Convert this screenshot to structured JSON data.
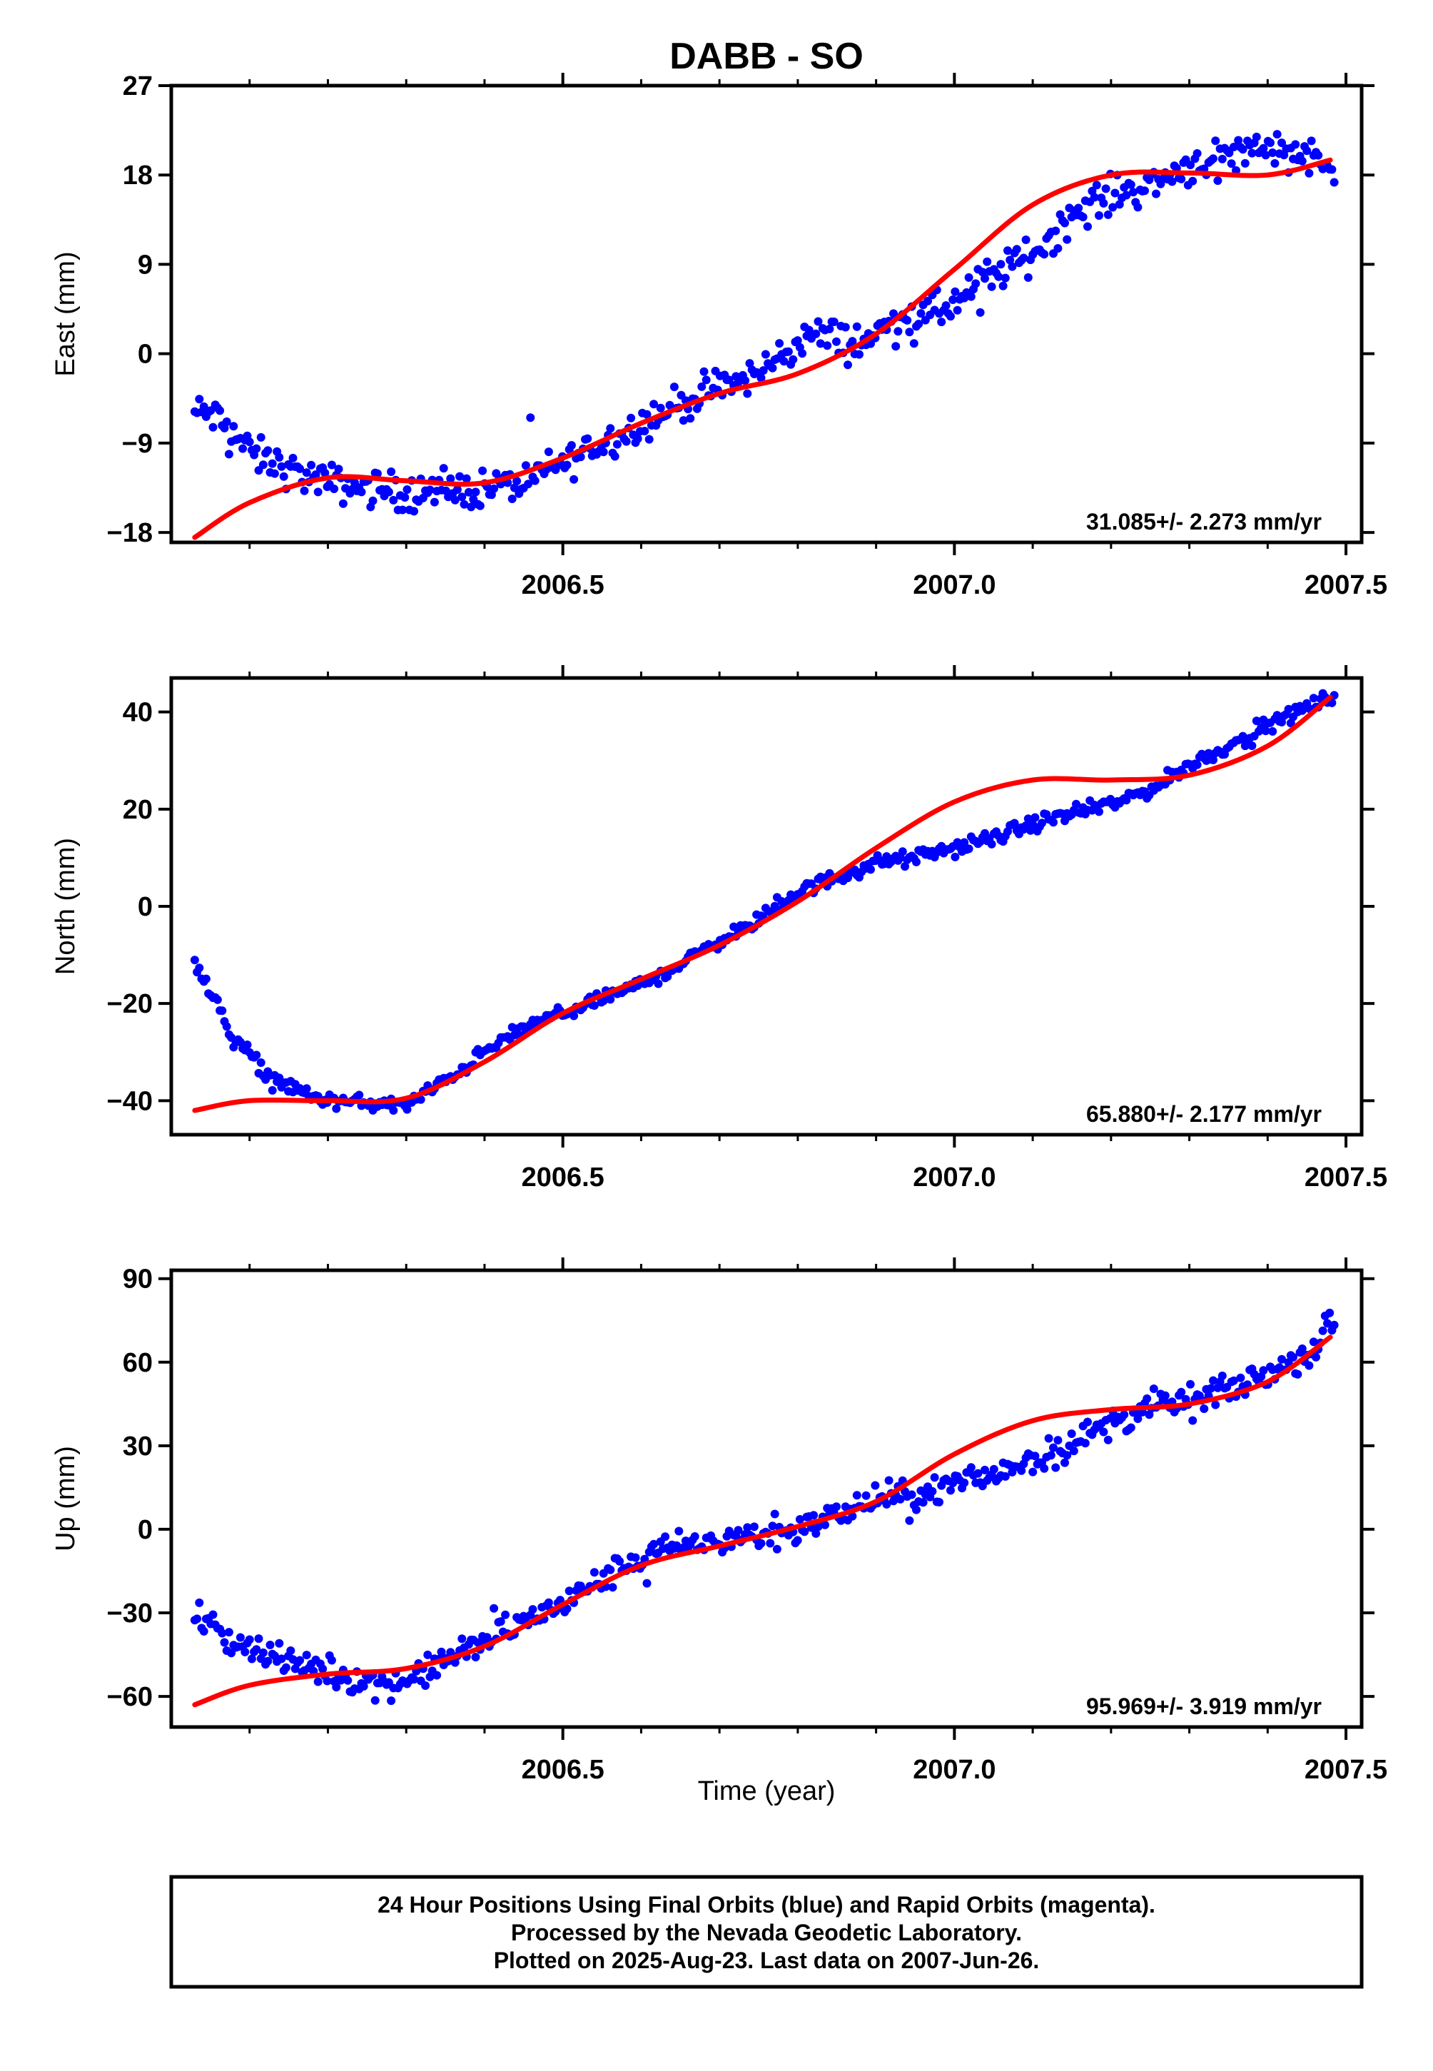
{
  "chart_data": {
    "type": "scatter",
    "title": "DABB - SO",
    "xlabel": "Time (year)",
    "xlim": [
      2006.0,
      2007.52
    ],
    "x_ticks": [
      2006.5,
      2007.0,
      2007.5
    ],
    "x_tick_labels": [
      "2006.5",
      "2007.0",
      "2007.5"
    ],
    "colors": {
      "data": "#0000ff",
      "model": "#ff0000",
      "frame": "#000000"
    },
    "panels": [
      {
        "name": "east",
        "ylabel": "East (mm)",
        "ylim": [
          -19,
          27
        ],
        "y_ticks": [
          -18,
          -9,
          0,
          9,
          18,
          27
        ],
        "y_tick_labels": [
          "−18",
          "−9",
          "0",
          "9",
          "18",
          "27"
        ],
        "rate_label": "31.085+/- 2.273 mm/yr",
        "anchors": [
          [
            2006.03,
            -6
          ],
          [
            2006.05,
            -6
          ],
          [
            2006.08,
            -8
          ],
          [
            2006.1,
            -10
          ],
          [
            2006.13,
            -11
          ],
          [
            2006.16,
            -12
          ],
          [
            2006.2,
            -13
          ],
          [
            2006.25,
            -13.5
          ],
          [
            2006.3,
            -14
          ],
          [
            2006.35,
            -14
          ],
          [
            2006.4,
            -13.5
          ],
          [
            2006.45,
            -13
          ],
          [
            2006.5,
            -11
          ],
          [
            2006.55,
            -9
          ],
          [
            2006.6,
            -7
          ],
          [
            2006.65,
            -5
          ],
          [
            2006.7,
            -3.5
          ],
          [
            2006.75,
            -2
          ],
          [
            2006.78,
            0
          ],
          [
            2006.82,
            2
          ],
          [
            2006.85,
            1.5
          ],
          [
            2006.88,
            1
          ],
          [
            2006.9,
            2
          ],
          [
            2006.93,
            3.5
          ],
          [
            2006.97,
            4
          ],
          [
            2007.0,
            5
          ],
          [
            2007.05,
            8
          ],
          [
            2007.1,
            10
          ],
          [
            2007.15,
            14
          ],
          [
            2007.2,
            16
          ],
          [
            2007.25,
            17
          ],
          [
            2007.3,
            19
          ],
          [
            2007.35,
            20
          ],
          [
            2007.4,
            21
          ],
          [
            2007.45,
            20
          ],
          [
            2007.48,
            19
          ]
        ],
        "noise": 1.6,
        "model": [
          [
            2006.03,
            -18.5
          ],
          [
            2006.1,
            -15
          ],
          [
            2006.2,
            -12.5
          ],
          [
            2006.3,
            -12.8
          ],
          [
            2006.4,
            -13
          ],
          [
            2006.5,
            -10.5
          ],
          [
            2006.6,
            -7
          ],
          [
            2006.7,
            -4
          ],
          [
            2006.8,
            -2
          ],
          [
            2006.9,
            2
          ],
          [
            2007.0,
            8.5
          ],
          [
            2007.1,
            15
          ],
          [
            2007.2,
            18
          ],
          [
            2007.3,
            18.2
          ],
          [
            2007.4,
            18
          ],
          [
            2007.48,
            19.5
          ]
        ]
      },
      {
        "name": "north",
        "ylabel": "North (mm)",
        "ylim": [
          -47,
          47
        ],
        "y_ticks": [
          -40,
          -20,
          0,
          20,
          40
        ],
        "y_tick_labels": [
          "−40",
          "−20",
          "0",
          "20",
          "40"
        ],
        "rate_label": "65.880+/- 2.177 mm/yr",
        "anchors": [
          [
            2006.03,
            -11
          ],
          [
            2006.05,
            -18
          ],
          [
            2006.08,
            -27
          ],
          [
            2006.12,
            -34
          ],
          [
            2006.16,
            -38
          ],
          [
            2006.2,
            -40
          ],
          [
            2006.25,
            -40.5
          ],
          [
            2006.3,
            -41
          ],
          [
            2006.35,
            -36
          ],
          [
            2006.4,
            -30
          ],
          [
            2006.45,
            -25
          ],
          [
            2006.5,
            -22
          ],
          [
            2006.55,
            -19
          ],
          [
            2006.6,
            -16
          ],
          [
            2006.65,
            -12
          ],
          [
            2006.7,
            -7
          ],
          [
            2006.75,
            -3
          ],
          [
            2006.8,
            3
          ],
          [
            2006.85,
            6
          ],
          [
            2006.9,
            9
          ],
          [
            2006.95,
            10
          ],
          [
            2007.0,
            12
          ],
          [
            2007.05,
            14
          ],
          [
            2007.1,
            17
          ],
          [
            2007.15,
            19
          ],
          [
            2007.2,
            21
          ],
          [
            2007.25,
            24
          ],
          [
            2007.3,
            29
          ],
          [
            2007.35,
            33
          ],
          [
            2007.4,
            37
          ],
          [
            2007.45,
            41
          ],
          [
            2007.48,
            43
          ]
        ],
        "noise": 1.3,
        "model": [
          [
            2006.03,
            -42
          ],
          [
            2006.1,
            -40
          ],
          [
            2006.2,
            -40
          ],
          [
            2006.3,
            -39.5
          ],
          [
            2006.4,
            -32
          ],
          [
            2006.5,
            -22
          ],
          [
            2006.6,
            -15
          ],
          [
            2006.7,
            -8
          ],
          [
            2006.8,
            1
          ],
          [
            2006.9,
            12
          ],
          [
            2007.0,
            21.5
          ],
          [
            2007.1,
            26
          ],
          [
            2007.2,
            26
          ],
          [
            2007.3,
            27
          ],
          [
            2007.4,
            33
          ],
          [
            2007.48,
            43
          ]
        ]
      },
      {
        "name": "up",
        "ylabel": "Up (mm)",
        "ylim": [
          -71,
          93
        ],
        "y_ticks": [
          -60,
          -30,
          0,
          30,
          60,
          90
        ],
        "y_tick_labels": [
          "−60",
          "−30",
          "0",
          "30",
          "60",
          "90"
        ],
        "rate_label": "95.969+/- 3.919 mm/yr",
        "anchors": [
          [
            2006.03,
            -30
          ],
          [
            2006.06,
            -38
          ],
          [
            2006.1,
            -42
          ],
          [
            2006.15,
            -48
          ],
          [
            2006.2,
            -51
          ],
          [
            2006.25,
            -55
          ],
          [
            2006.3,
            -55
          ],
          [
            2006.35,
            -47
          ],
          [
            2006.4,
            -40
          ],
          [
            2006.45,
            -33
          ],
          [
            2006.5,
            -27
          ],
          [
            2006.55,
            -18
          ],
          [
            2006.6,
            -10
          ],
          [
            2006.65,
            -6
          ],
          [
            2006.7,
            -4
          ],
          [
            2006.75,
            -2
          ],
          [
            2006.8,
            0
          ],
          [
            2006.85,
            5
          ],
          [
            2006.9,
            11
          ],
          [
            2006.95,
            12
          ],
          [
            2007.0,
            16
          ],
          [
            2007.05,
            20
          ],
          [
            2007.1,
            25
          ],
          [
            2007.15,
            31
          ],
          [
            2007.2,
            38
          ],
          [
            2007.25,
            44
          ],
          [
            2007.3,
            46
          ],
          [
            2007.35,
            50
          ],
          [
            2007.4,
            56
          ],
          [
            2007.45,
            63
          ],
          [
            2007.48,
            73
          ]
        ],
        "noise": 4.5,
        "model": [
          [
            2006.03,
            -63
          ],
          [
            2006.1,
            -56
          ],
          [
            2006.2,
            -52
          ],
          [
            2006.3,
            -50
          ],
          [
            2006.4,
            -42
          ],
          [
            2006.5,
            -27
          ],
          [
            2006.6,
            -13
          ],
          [
            2006.7,
            -6
          ],
          [
            2006.8,
            1
          ],
          [
            2006.9,
            10
          ],
          [
            2007.0,
            27
          ],
          [
            2007.1,
            39
          ],
          [
            2007.2,
            43
          ],
          [
            2007.3,
            45
          ],
          [
            2007.4,
            53
          ],
          [
            2007.48,
            69
          ]
        ]
      }
    ],
    "footer_lines": [
      "24 Hour Positions Using Final Orbits (blue) and Rapid Orbits (magenta).",
      "Processed by the Nevada Geodetic Laboratory.",
      "Plotted on 2025-Aug-23. Last data on 2007-Jun-26."
    ]
  }
}
